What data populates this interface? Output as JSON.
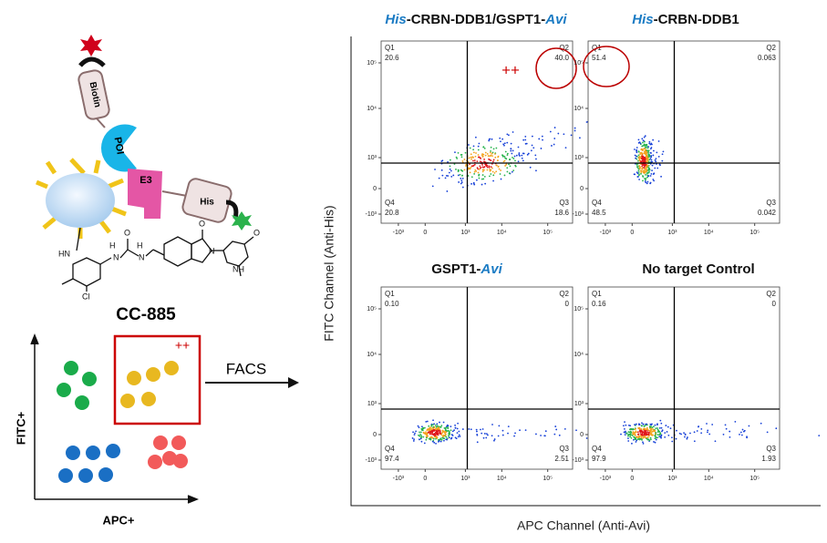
{
  "panels": [
    {
      "title": [
        {
          "text": "His",
          "italic": true
        },
        {
          "text": "-CRBN-DDB1/GSPT1-",
          "italic": false
        },
        {
          "text": "Avi",
          "italic": true
        }
      ],
      "quadrants": [
        {
          "label": "Q1",
          "value": "20.6"
        },
        {
          "label": "Q2",
          "value": "40.0"
        },
        {
          "label": "Q3",
          "value": "18.6"
        },
        {
          "label": "Q4",
          "value": "20.8"
        }
      ]
    },
    {
      "title": [
        {
          "text": "His",
          "italic": true
        },
        {
          "text": "-CRBN-DDB1",
          "italic": false
        }
      ],
      "quadrants": [
        {
          "label": "Q1",
          "value": "51.4"
        },
        {
          "label": "Q2",
          "value": "0.063"
        },
        {
          "label": "Q3",
          "value": "0.042"
        },
        {
          "label": "Q4",
          "value": "48.5"
        }
      ]
    },
    {
      "title": [
        {
          "text": "GSPT1-",
          "italic": false
        },
        {
          "text": "Avi",
          "italic": true
        }
      ],
      "quadrants": [
        {
          "label": "Q1",
          "value": "0.10"
        },
        {
          "label": "Q2",
          "value": "0"
        },
        {
          "label": "Q3",
          "value": "2.51"
        },
        {
          "label": "Q4",
          "value": "97.4"
        }
      ]
    },
    {
      "title": [
        {
          "text": "No target Control",
          "italic": false
        }
      ],
      "quadrants": [
        {
          "label": "Q1",
          "value": "0.16"
        },
        {
          "label": "Q2",
          "value": "0"
        },
        {
          "label": "Q3",
          "value": "1.93"
        },
        {
          "label": "Q4",
          "value": "97.9"
        }
      ]
    }
  ],
  "y_axis_label": "FITC Channel (Anti-His)",
  "x_axis_label": "APC Channel (Anti-Avi)",
  "y_ticks": [
    "10⁵",
    "10⁴",
    "10³",
    "0",
    "-10³"
  ],
  "x_ticks": [
    "-10³",
    "0",
    "10³",
    "10⁴",
    "10⁵"
  ],
  "plot_annotation": "++",
  "schematic": {
    "biotin": "Biotin",
    "poi": "POI",
    "e3": "E3",
    "his": "His",
    "compound": "CC-885",
    "atoms": [
      "HN",
      "H",
      "N",
      "H",
      "N",
      "Cl",
      "O",
      "N",
      "O",
      "NH",
      "O"
    ],
    "facs": "FACS",
    "y_label": "FITC+",
    "x_label": "APC+",
    "gate_annotation": "++"
  }
}
